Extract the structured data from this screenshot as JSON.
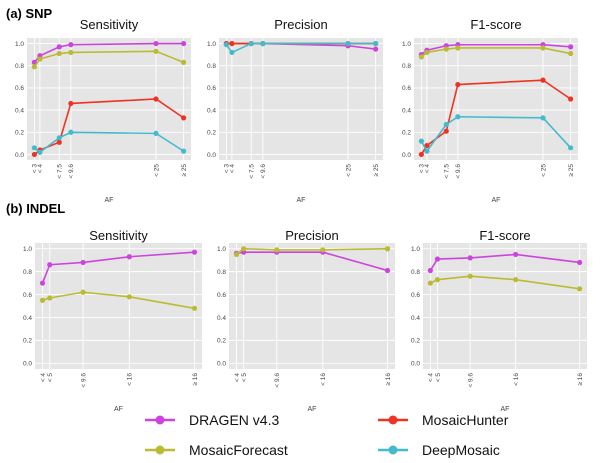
{
  "figure": {
    "sections": [
      {
        "label": "(a) SNP",
        "chart_indices": [
          0,
          1,
          2
        ]
      },
      {
        "label": "(b) INDEL",
        "chart_indices": [
          3,
          4,
          5
        ]
      }
    ],
    "legend": [
      {
        "name": "DRAGEN v4.3",
        "color": "#cc44dd"
      },
      {
        "name": "MosaicHunter",
        "color": "#ee3322"
      },
      {
        "name": "MosaicForecast",
        "color": "#bbbb33"
      },
      {
        "name": "DeepMosaic",
        "color": "#44bbcc"
      }
    ]
  },
  "chart_data": [
    {
      "type": "line",
      "title": "Sensitivity",
      "xlabel": "AF",
      "ylabel": "",
      "x": [
        3,
        4,
        7.5,
        9.6,
        25,
        30
      ],
      "xticks": [
        "< 3",
        "< 4",
        "< 7.5",
        "< 9.6",
        "< 25",
        "≥ 25"
      ],
      "ylim": [
        -0.05,
        1.05
      ],
      "yticks": [
        0.0,
        0.2,
        0.4,
        0.6,
        0.8,
        1.0
      ],
      "grid": true,
      "series": [
        {
          "name": "DRAGEN v4.3",
          "color": "#cc44dd",
          "values": [
            0.83,
            0.89,
            0.97,
            0.99,
            1.0,
            1.0
          ]
        },
        {
          "name": "MosaicForecast",
          "color": "#bbbb33",
          "values": [
            0.79,
            0.86,
            0.91,
            0.92,
            0.93,
            0.83
          ]
        },
        {
          "name": "MosaicHunter",
          "color": "#ee3322",
          "values": [
            0.0,
            0.04,
            0.11,
            0.46,
            0.5,
            0.33
          ]
        },
        {
          "name": "DeepMosaic",
          "color": "#44bbcc",
          "values": [
            0.06,
            0.02,
            0.15,
            0.2,
            0.19,
            0.03
          ]
        }
      ]
    },
    {
      "type": "line",
      "title": "Precision",
      "xlabel": "AF",
      "ylabel": "",
      "x": [
        3,
        4,
        7.5,
        9.6,
        25,
        30
      ],
      "xticks": [
        "< 3",
        "< 4",
        "< 7.5",
        "< 9.6",
        "< 25",
        "≥ 25"
      ],
      "ylim": [
        -0.05,
        1.05
      ],
      "yticks": [
        0.0,
        0.2,
        0.4,
        0.6,
        0.8,
        1.0
      ],
      "grid": true,
      "series": [
        {
          "name": "DRAGEN v4.3",
          "color": "#cc44dd",
          "values": [
            1.0,
            1.0,
            1.0,
            1.0,
            0.98,
            0.95
          ]
        },
        {
          "name": "MosaicForecast",
          "color": "#bbbb33",
          "values": [
            1.0,
            1.0,
            1.0,
            1.0,
            1.0,
            1.0
          ]
        },
        {
          "name": "MosaicHunter",
          "color": "#ee3322",
          "values": [
            1.0,
            1.0,
            1.0,
            1.0,
            1.0,
            1.0
          ]
        },
        {
          "name": "DeepMosaic",
          "color": "#44bbcc",
          "values": [
            0.99,
            0.92,
            1.0,
            1.0,
            1.0,
            1.0
          ]
        }
      ]
    },
    {
      "type": "line",
      "title": "F1-score",
      "xlabel": "AF",
      "ylabel": "",
      "x": [
        3,
        4,
        7.5,
        9.6,
        25,
        30
      ],
      "xticks": [
        "< 3",
        "< 4",
        "< 7.5",
        "< 9.6",
        "< 25",
        "≥ 25"
      ],
      "ylim": [
        -0.05,
        1.05
      ],
      "yticks": [
        0.0,
        0.2,
        0.4,
        0.6,
        0.8,
        1.0
      ],
      "grid": true,
      "series": [
        {
          "name": "DRAGEN v4.3",
          "color": "#cc44dd",
          "values": [
            0.9,
            0.94,
            0.98,
            0.99,
            0.99,
            0.97
          ]
        },
        {
          "name": "MosaicForecast",
          "color": "#bbbb33",
          "values": [
            0.88,
            0.92,
            0.95,
            0.96,
            0.96,
            0.91
          ]
        },
        {
          "name": "MosaicHunter",
          "color": "#ee3322",
          "values": [
            0.0,
            0.08,
            0.21,
            0.63,
            0.67,
            0.5
          ]
        },
        {
          "name": "DeepMosaic",
          "color": "#44bbcc",
          "values": [
            0.12,
            0.03,
            0.27,
            0.34,
            0.33,
            0.06
          ]
        }
      ]
    },
    {
      "type": "line",
      "title": "Sensitivity",
      "xlabel": "AF",
      "ylabel": "",
      "x": [
        4,
        5,
        9.6,
        16,
        25
      ],
      "xticks": [
        "< 4",
        "< 5",
        "< 9.6",
        "< 16",
        "≥ 16"
      ],
      "ylim": [
        -0.05,
        1.05
      ],
      "yticks": [
        0.0,
        0.2,
        0.4,
        0.6,
        0.8,
        1.0
      ],
      "grid": true,
      "series": [
        {
          "name": "DRAGEN v4.3",
          "color": "#cc44dd",
          "values": [
            0.7,
            0.86,
            0.88,
            0.93,
            0.97
          ]
        },
        {
          "name": "MosaicForecast",
          "color": "#bbbb33",
          "values": [
            0.55,
            0.57,
            0.62,
            0.58,
            0.48
          ]
        }
      ]
    },
    {
      "type": "line",
      "title": "Precision",
      "xlabel": "AF",
      "ylabel": "",
      "x": [
        4,
        5,
        9.6,
        16,
        25
      ],
      "xticks": [
        "< 4",
        "< 5",
        "< 9.6",
        "< 16",
        "≥ 16"
      ],
      "ylim": [
        -0.05,
        1.05
      ],
      "yticks": [
        0.0,
        0.2,
        0.4,
        0.6,
        0.8,
        1.0
      ],
      "grid": true,
      "series": [
        {
          "name": "DRAGEN v4.3",
          "color": "#cc44dd",
          "values": [
            0.96,
            0.97,
            0.97,
            0.97,
            0.81
          ]
        },
        {
          "name": "MosaicForecast",
          "color": "#bbbb33",
          "values": [
            0.95,
            1.0,
            0.99,
            0.99,
            1.0
          ]
        }
      ]
    },
    {
      "type": "line",
      "title": "F1-score",
      "xlabel": "AF",
      "ylabel": "",
      "x": [
        4,
        5,
        9.6,
        16,
        25
      ],
      "xticks": [
        "< 4",
        "< 5",
        "< 9.6",
        "< 16",
        "≥ 16"
      ],
      "ylim": [
        -0.05,
        1.05
      ],
      "yticks": [
        0.0,
        0.2,
        0.4,
        0.6,
        0.8,
        1.0
      ],
      "grid": true,
      "series": [
        {
          "name": "DRAGEN v4.3",
          "color": "#cc44dd",
          "values": [
            0.81,
            0.91,
            0.92,
            0.95,
            0.88
          ]
        },
        {
          "name": "MosaicForecast",
          "color": "#bbbb33",
          "values": [
            0.7,
            0.73,
            0.76,
            0.73,
            0.65
          ]
        }
      ]
    }
  ]
}
